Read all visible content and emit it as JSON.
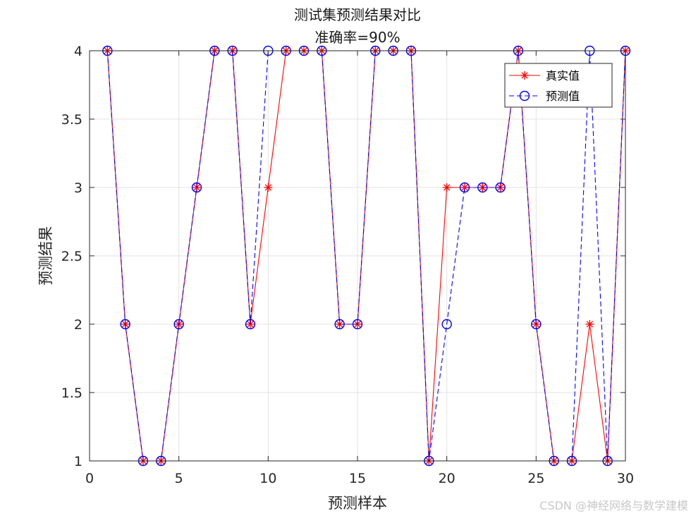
{
  "chart_data": {
    "type": "line",
    "title": "测试集预测结果对比",
    "subtitle": "准确率=90%",
    "xlabel": "预测样本",
    "ylabel": "预测结果",
    "xlim": [
      0,
      30
    ],
    "ylim": [
      1,
      4
    ],
    "xticks": [
      0,
      5,
      10,
      15,
      20,
      25,
      30
    ],
    "yticks": [
      1,
      1.5,
      2,
      2.5,
      3,
      3.5,
      4
    ],
    "grid": true,
    "legend_position": "top-right",
    "x": [
      1,
      2,
      3,
      4,
      5,
      6,
      7,
      8,
      9,
      10,
      11,
      12,
      13,
      14,
      15,
      16,
      17,
      18,
      19,
      20,
      21,
      22,
      23,
      24,
      25,
      26,
      27,
      28,
      29,
      30
    ],
    "series": [
      {
        "name": "真实值",
        "color": "#ff0000",
        "line_style": "solid",
        "marker": "asterisk",
        "values": [
          4,
          2,
          1,
          1,
          2,
          3,
          4,
          4,
          2,
          3,
          4,
          4,
          4,
          2,
          2,
          4,
          4,
          4,
          1,
          3,
          3,
          3,
          3,
          4,
          2,
          1,
          1,
          2,
          1,
          4
        ]
      },
      {
        "name": "预测值",
        "color": "#0000ff",
        "line_style": "dashed",
        "marker": "circle",
        "values": [
          4,
          2,
          1,
          1,
          2,
          3,
          4,
          4,
          2,
          4,
          4,
          4,
          4,
          2,
          2,
          4,
          4,
          4,
          1,
          2,
          3,
          3,
          3,
          4,
          2,
          1,
          1,
          4,
          1,
          4
        ]
      }
    ]
  },
  "watermark": "CSDN @神经网络与数学建模"
}
